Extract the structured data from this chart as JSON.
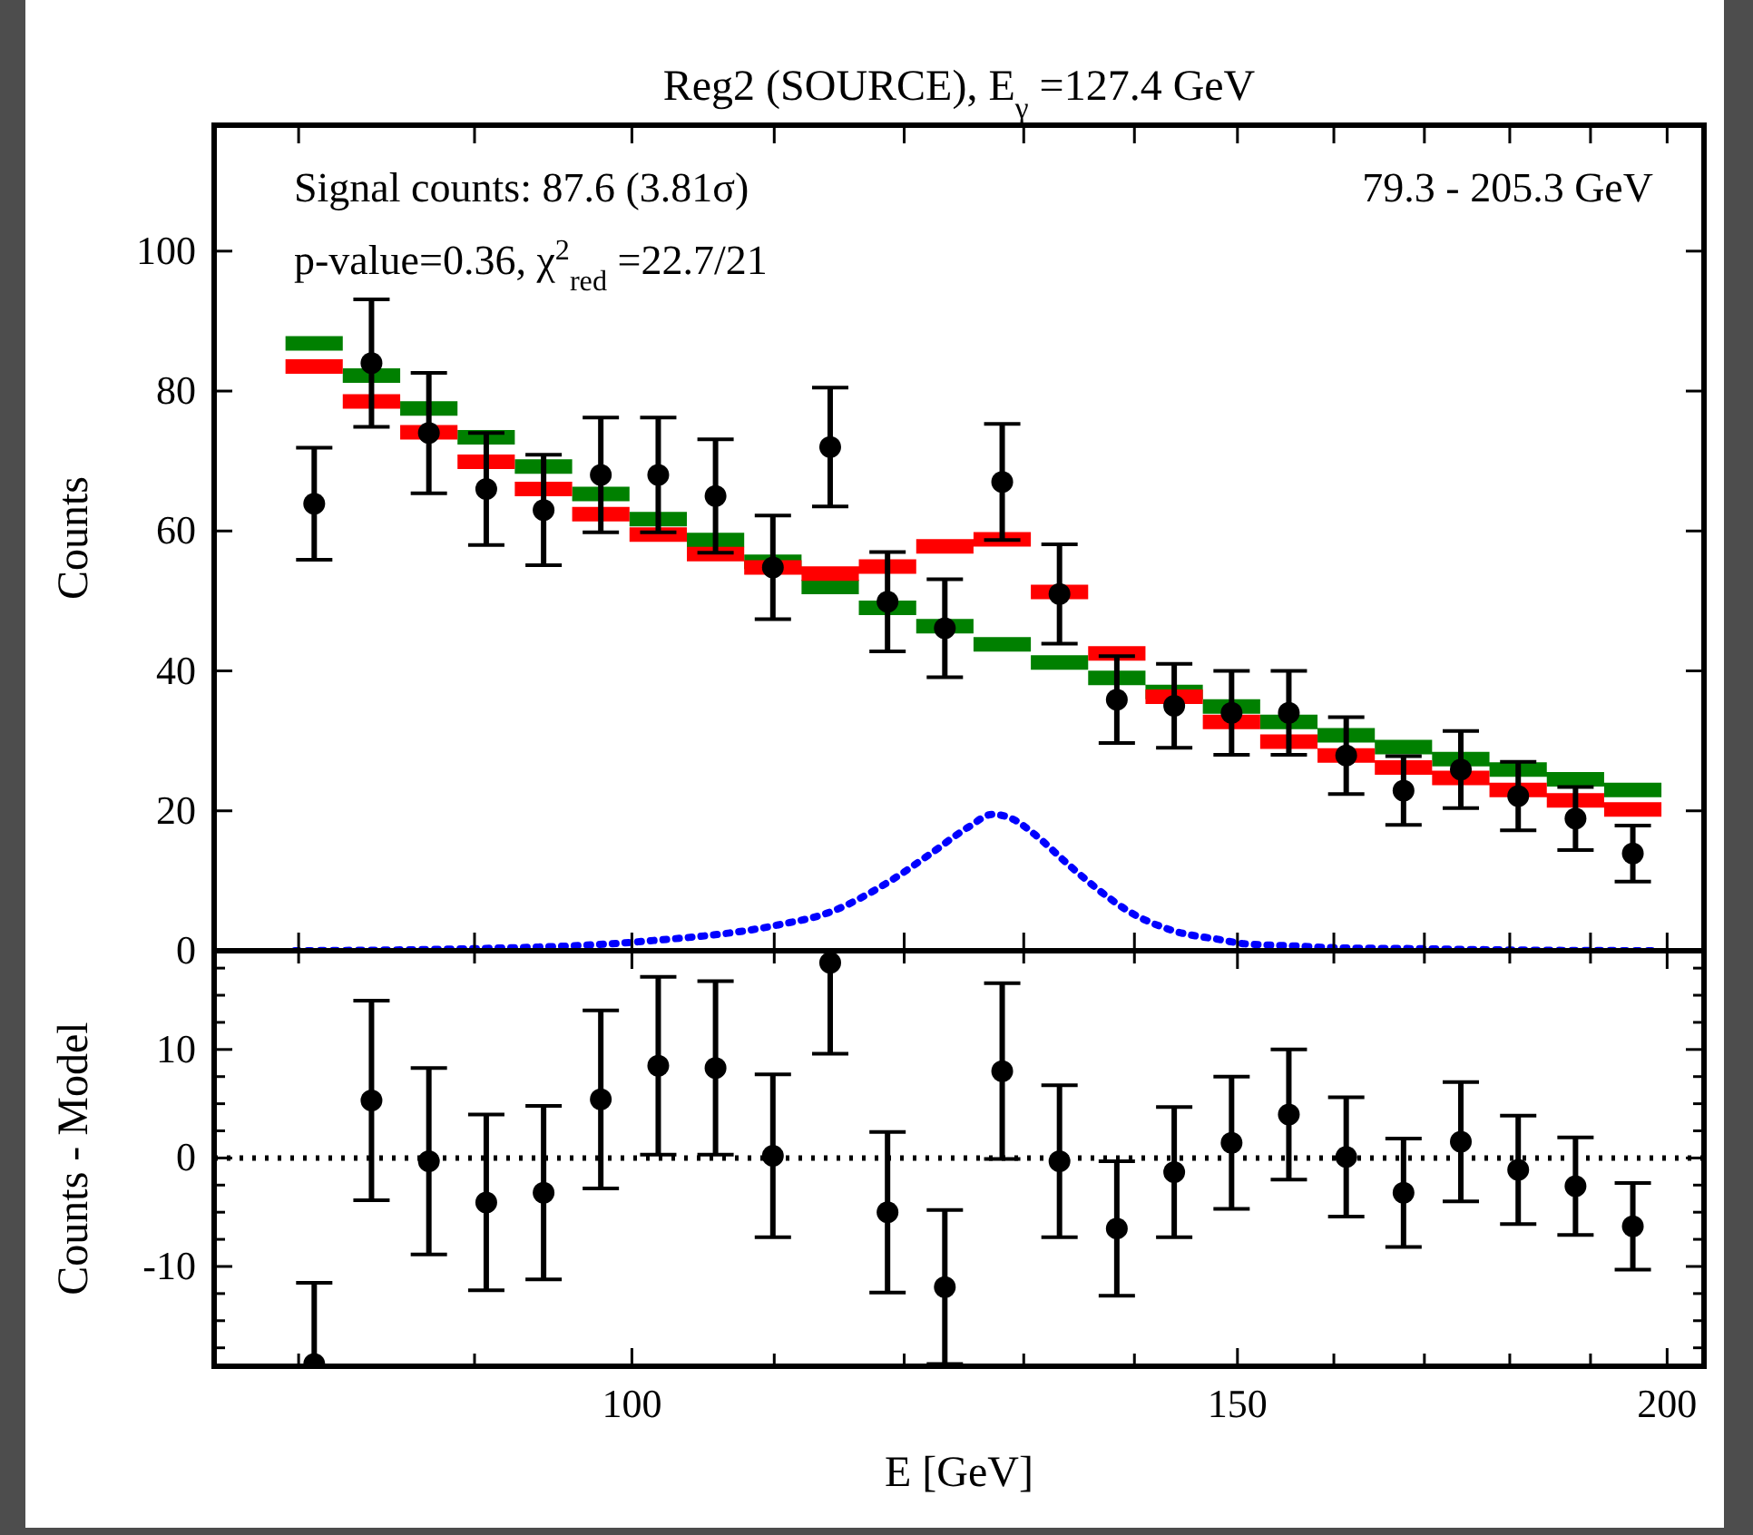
{
  "chart_data": [
    {
      "type": "scatter",
      "title": "Reg2 (SOURCE), E$_{γ}$ =127.4 GeV",
      "ylabel": "Counts",
      "log": "x",
      "tick_labels": "y",
      "x": [
        80.84,
        84.0,
        87.29,
        90.71,
        94.26,
        97.94,
        101.78,
        105.76,
        109.9,
        114.2,
        118.67,
        123.31,
        128.14,
        133.15,
        138.36,
        143.78,
        149.41,
        155.25,
        161.33,
        167.64,
        174.2,
        181.02,
        188.1,
        195.46
      ],
      "xlim": [
        75.6,
        205
      ],
      "xticks": [
        {
          "value": 80,
          "label": null
        },
        {
          "value": 90,
          "label": null
        },
        {
          "value": 100,
          "label": null
        },
        {
          "value": 110,
          "label": null
        },
        {
          "value": 120,
          "label": null
        },
        {
          "value": 130,
          "label": null
        },
        {
          "value": 140,
          "label": null
        },
        {
          "value": 150,
          "label": null
        },
        {
          "value": 160,
          "label": null
        },
        {
          "value": 170,
          "label": null
        },
        {
          "value": 180,
          "label": null
        },
        {
          "value": 190,
          "label": null
        },
        {
          "value": 200,
          "label": null
        }
      ],
      "ylim": [
        0,
        118
      ],
      "yticks": [
        0,
        20,
        40,
        60,
        80,
        100
      ],
      "series": [
        {
          "type": "step",
          "color": "#008000",
          "x": [
            79.3,
            82.4,
            85.63,
            88.98,
            92.46,
            96.08,
            99.84,
            103.75,
            107.81,
            112.03,
            116.41,
            120.97,
            125.7,
            130.62,
            135.73,
            141.04,
            146.56,
            152.3,
            158.26,
            164.45,
            170.88,
            177.57,
            184.52,
            191.74,
            199.24
          ],
          "values": [
            86.8,
            82.2,
            77.5,
            73.4,
            69.2,
            65.3,
            61.7,
            58.7,
            55.6,
            52.0,
            49.0,
            46.4,
            43.8,
            41.2,
            39.0,
            37.0,
            34.9,
            32.7,
            30.8,
            29.1,
            27.4,
            25.9,
            24.5,
            23.0,
            23.0
          ]
        },
        {
          "type": "step",
          "color": "#ff0000",
          "x": [
            79.3,
            82.4,
            85.63,
            88.98,
            92.46,
            96.08,
            99.84,
            103.75,
            107.81,
            112.03,
            116.41,
            120.97,
            125.7,
            130.62,
            135.73,
            141.04,
            146.56,
            152.3,
            158.26,
            164.45,
            170.88,
            177.57,
            184.52,
            191.74,
            199.24
          ],
          "values": [
            83.5,
            78.5,
            74.1,
            69.9,
            66.0,
            62.4,
            59.5,
            56.7,
            54.8,
            53.9,
            54.9,
            57.8,
            58.8,
            51.3,
            42.5,
            36.3,
            32.7,
            29.9,
            27.9,
            26.2,
            24.7,
            23.0,
            21.5,
            20.2,
            20.2
          ]
        },
        {
          "type": "line",
          "color": "#0000ff",
          "line_style": "dotted",
          "x": [
            79.8,
            90,
            100.5,
            110.3,
            114.0,
            118.9,
            122.0,
            125.3,
            127.3,
            129.2,
            130.9,
            134.1,
            137.6,
            139.4,
            143.6,
            148.2,
            150.7,
            155.5,
            160.7,
            168.7,
            180,
            199
          ],
          "values": [
            0,
            0.3,
            1.3,
            3.7,
            5.4,
            10.0,
            13.7,
            17.7,
            19.5,
            18.7,
            16.7,
            12.1,
            7.6,
            5.7,
            2.9,
            1.6,
            1.0,
            0.7,
            0.4,
            0.3,
            0.1,
            0
          ]
        },
        {
          "color": "#000000",
          "marker": "circle",
          "values": [
            63.9,
            84.0,
            74.0,
            66.0,
            63.0,
            68.0,
            68.0,
            65.0,
            54.8,
            72.0,
            49.9,
            46.1,
            67.0,
            51.0,
            35.9,
            35.0,
            34.0,
            34.0,
            27.9,
            22.9,
            25.9,
            22.1,
            18.9,
            13.9
          ],
          "errors": [
            8.0,
            9.1,
            8.6,
            8.0,
            7.9,
            8.2,
            8.2,
            8.1,
            7.4,
            8.5,
            7.1,
            7.0,
            8.3,
            7.1,
            6.2,
            6.0,
            6.0,
            6.0,
            5.5,
            4.9,
            5.5,
            4.9,
            4.5,
            4.0
          ]
        }
      ],
      "annotations": [
        "Signal counts: 87.6 (3.81σ)",
        "p-value=0.36, χ$^{2}$$_{red}$ =22.7/21",
        "79.3 - 205.3 GeV"
      ]
    },
    {
      "type": "scatter",
      "xlabel": "E [GeV]",
      "ylabel": "Counts - Model",
      "log": "x",
      "marker": "circle",
      "x": [
        80.84,
        84.0,
        87.29,
        90.71,
        94.26,
        97.94,
        101.78,
        105.76,
        109.9,
        114.2,
        118.67,
        123.31,
        128.14,
        133.15,
        138.36,
        143.78,
        149.41,
        155.25,
        161.33,
        167.64,
        174.2,
        181.02,
        188.1,
        195.46
      ],
      "xlim": [
        75.6,
        205
      ],
      "xticks": [
        {
          "value": 80,
          "label": null
        },
        {
          "value": 90,
          "label": null
        },
        100,
        {
          "value": 110,
          "label": null
        },
        {
          "value": 120,
          "label": null
        },
        {
          "value": 130,
          "label": null
        },
        {
          "value": 140,
          "label": null
        },
        150,
        {
          "value": 160,
          "label": null
        },
        {
          "value": 170,
          "label": null
        },
        {
          "value": 180,
          "label": null
        },
        {
          "value": 190,
          "label": null
        },
        200
      ],
      "ylim": [
        -19.2,
        19.1
      ],
      "yticks": [
        {
          "value": -17.5,
          "label": null
        },
        {
          "value": -15,
          "label": null
        },
        {
          "value": -12.5,
          "label": null
        },
        -10,
        {
          "value": -7.5,
          "label": null
        },
        {
          "value": -5,
          "label": null
        },
        {
          "value": -2.5,
          "label": null
        },
        0,
        {
          "value": 2.5,
          "label": null
        },
        {
          "value": 5,
          "label": null
        },
        {
          "value": 7.5,
          "label": null
        },
        10,
        {
          "value": 12.5,
          "label": null
        },
        {
          "value": 15,
          "label": null
        },
        {
          "value": 17.5,
          "label": null
        }
      ],
      "series": [
        {
          "color": "#000000",
          "values": [
            -19.0,
            5.3,
            -0.3,
            -4.1,
            -3.2,
            5.4,
            8.5,
            8.3,
            0.2,
            18.0,
            -5.0,
            -11.9,
            8.0,
            -0.3,
            -6.5,
            -1.3,
            1.4,
            4.0,
            0.1,
            -3.2,
            1.5,
            -1.1,
            -2.6,
            -6.3
          ],
          "errors": [
            [
              -19.2,
              -11.5
            ],
            9.2,
            8.6,
            8.1,
            8.0,
            8.2,
            8.2,
            8.0,
            7.5,
            [
              9.6,
              19.1
            ],
            7.4,
            7.1,
            8.1,
            7.0,
            6.2,
            6.0,
            6.1,
            6.0,
            5.5,
            5.0,
            5.5,
            5.0,
            4.5,
            4.0
          ]
        }
      ],
      "ref_lines": [
        {
          "axis": "y",
          "value": 0,
          "line_style": "dotted",
          "color": "#000000"
        }
      ]
    }
  ]
}
